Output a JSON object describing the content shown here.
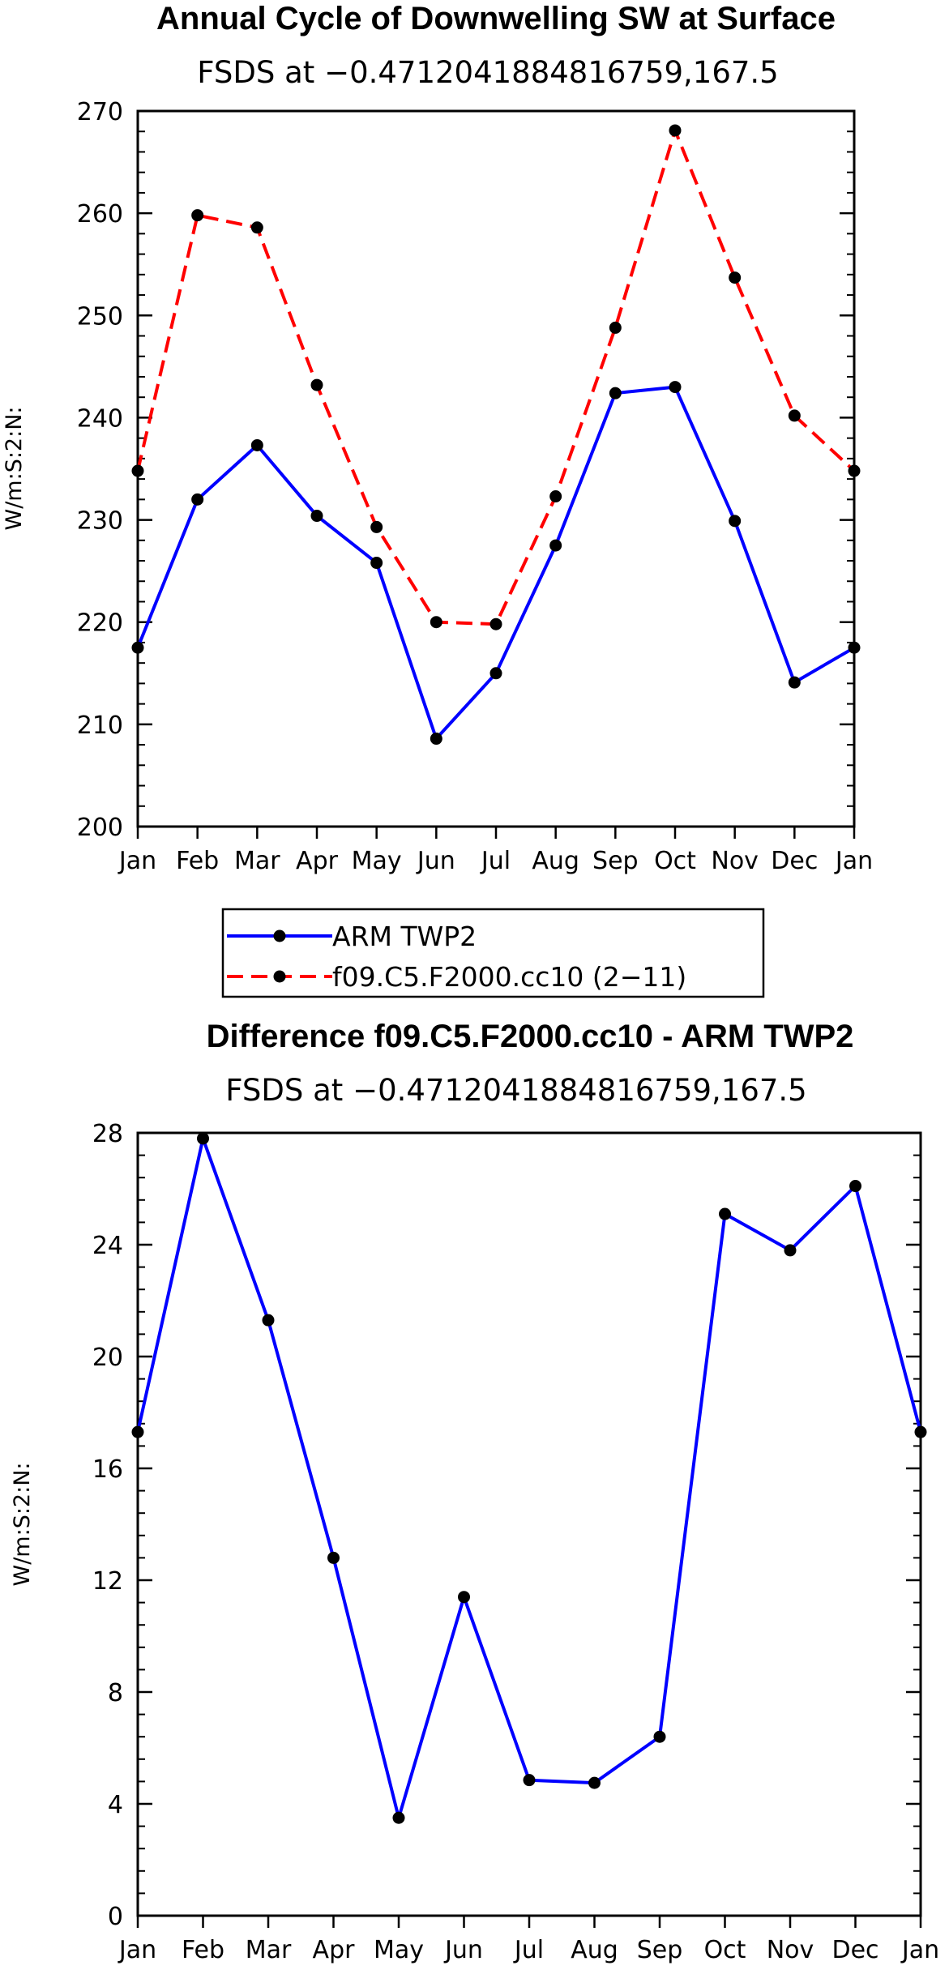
{
  "chart_data": [
    {
      "type": "line",
      "title": "Annual Cycle of Downwelling SW at Surface",
      "subtitle": "FSDS at −0.4712041884816759,167.5",
      "ylabel": "W/m:S:2:N:",
      "xlabel": "",
      "categories": [
        "Jan",
        "Feb",
        "Mar",
        "Apr",
        "May",
        "Jun",
        "Jul",
        "Aug",
        "Sep",
        "Oct",
        "Nov",
        "Dec",
        "Jan"
      ],
      "ylim": [
        200,
        270
      ],
      "yticks": [
        200,
        210,
        220,
        230,
        240,
        250,
        260,
        270
      ],
      "series": [
        {
          "name": "ARM TWP2",
          "color": "#0000ff",
          "dash": "solid",
          "values": [
            217.5,
            232.0,
            237.3,
            230.4,
            225.8,
            208.6,
            215.0,
            227.5,
            242.4,
            243.0,
            229.9,
            214.1,
            217.5
          ]
        },
        {
          "name": "f09.C5.F2000.cc10 (2−11)",
          "color": "#ff0000",
          "dash": "dashed",
          "values": [
            234.8,
            259.8,
            258.6,
            243.2,
            229.3,
            220.0,
            219.8,
            232.3,
            248.8,
            268.1,
            253.7,
            240.2,
            234.8
          ]
        }
      ],
      "legend": {
        "entries": [
          "ARM TWP2",
          "f09.C5.F2000.cc10 (2−11)"
        ]
      }
    },
    {
      "type": "line",
      "title": "Difference f09.C5.F2000.cc10 - ARM TWP2",
      "subtitle": "FSDS at −0.4712041884816759,167.5",
      "ylabel": "W/m:S:2:N:",
      "xlabel": "",
      "categories": [
        "Jan",
        "Feb",
        "Mar",
        "Apr",
        "May",
        "Jun",
        "Jul",
        "Aug",
        "Sep",
        "Oct",
        "Nov",
        "Dec",
        "Jan"
      ],
      "ylim": [
        0,
        28
      ],
      "yticks": [
        0,
        4,
        8,
        12,
        16,
        20,
        24,
        28
      ],
      "series": [
        {
          "name": "Difference",
          "color": "#0000ff",
          "dash": "solid",
          "values": [
            17.3,
            27.8,
            21.3,
            12.8,
            3.5,
            11.4,
            4.85,
            4.75,
            6.4,
            25.1,
            23.8,
            26.1,
            17.3
          ]
        }
      ]
    }
  ]
}
